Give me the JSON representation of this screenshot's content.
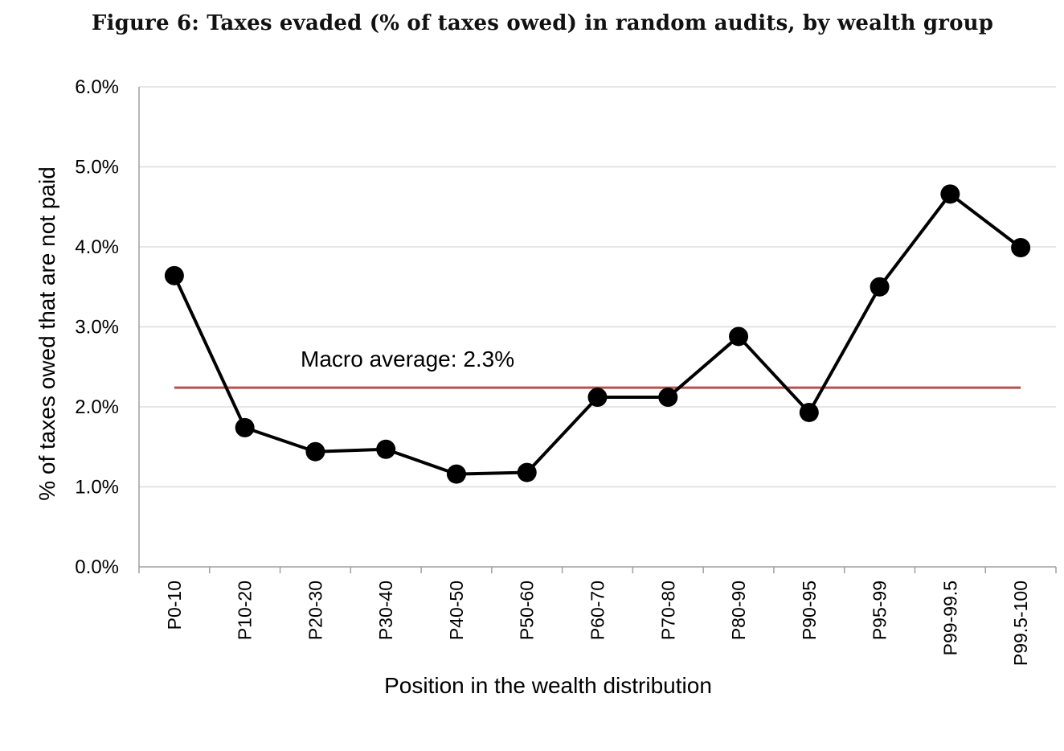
{
  "figure_title": "Figure 6: Taxes evaded (% of taxes owed) in random audits, by wealth group",
  "chart_data": {
    "type": "line",
    "title": "Figure 6: Taxes evaded (% of taxes owed) in random audits, by wealth group",
    "xlabel": "Position in the wealth distribution",
    "ylabel": "% of taxes owed that are not paid",
    "categories": [
      "P0-10",
      "P10-20",
      "P20-30",
      "P30-40",
      "P40-50",
      "P50-60",
      "P60-70",
      "P70-80",
      "P80-90",
      "P90-95",
      "P95-99",
      "P99-99.5",
      "P99.5-100"
    ],
    "series": [
      {
        "name": "Taxes evaded",
        "color": "#000000",
        "values": [
          3.64,
          1.74,
          1.44,
          1.47,
          1.16,
          1.18,
          2.12,
          2.12,
          2.88,
          1.93,
          3.5,
          4.66,
          3.99
        ]
      }
    ],
    "reference_line": {
      "label": "Macro average: 2.3%",
      "value": 2.3,
      "color": "#b5524f"
    },
    "ylim": [
      0,
      6
    ],
    "yticks": [
      0,
      1,
      2,
      3,
      4,
      5,
      6
    ],
    "ytick_labels": [
      "0.0%",
      "1.0%",
      "2.0%",
      "3.0%",
      "4.0%",
      "5.0%",
      "6.0%"
    ],
    "grid": true,
    "legend": "none"
  }
}
